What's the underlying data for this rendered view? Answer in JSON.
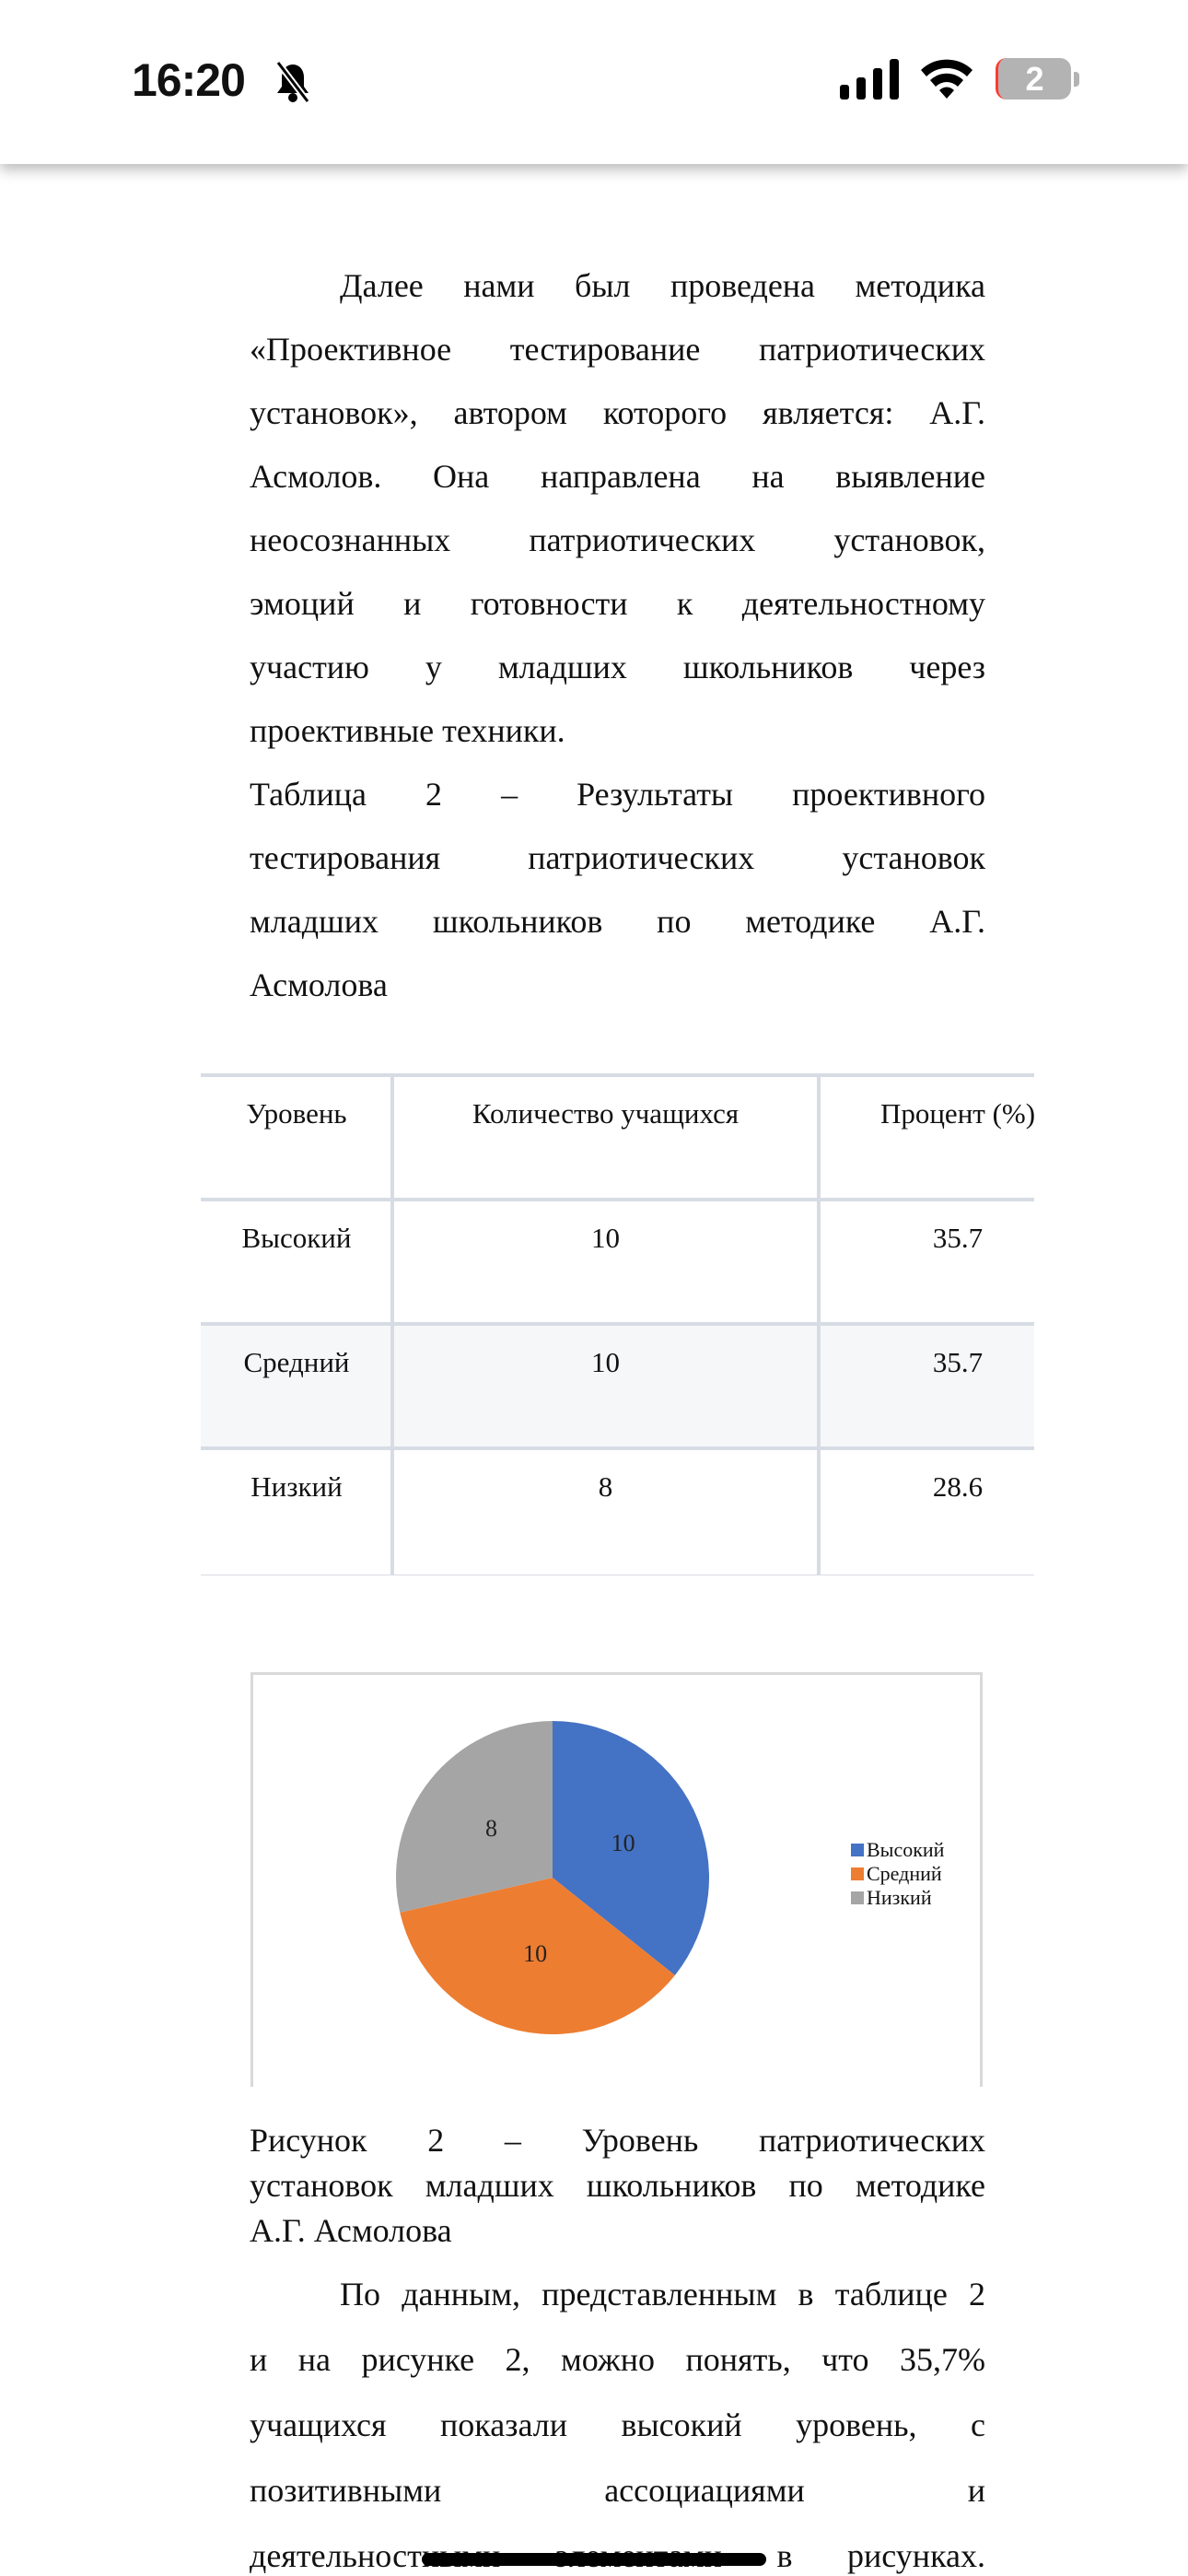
{
  "status_bar": {
    "time": "16:20",
    "battery_level": "2",
    "icons": [
      "bell-slash-icon",
      "signal-icon",
      "wifi-icon",
      "battery-icon"
    ]
  },
  "paragraph1": [
    "Далее нами был проведена методика",
    "«Проективное тестирование патриотических",
    "установок», автором которого является: А.Г.",
    "Асмолов. Она направлена на выявление",
    "неосознанных  патриотических установок,",
    "эмоций и готовности к деятельностному",
    "участию у младших школьников через",
    "проективные техники."
  ],
  "table_caption": [
    "Таблица 2 – Результаты проективного",
    "тестирования патриотических установок",
    "младших школьников по методике А.Г.",
    "Асмолова"
  ],
  "table": {
    "headers": [
      "Уровень",
      "Количество учащихся",
      "Процент (%)"
    ],
    "rows": [
      [
        "Высокий",
        "10",
        "35.7"
      ],
      [
        "Средний",
        "10",
        "35.7"
      ],
      [
        "Низкий",
        "8",
        "28.6"
      ]
    ]
  },
  "chart_data": {
    "type": "pie",
    "categories": [
      "Высокий",
      "Средний",
      "Низкий"
    ],
    "values": [
      10,
      10,
      8
    ],
    "data_labels": [
      "10",
      "10",
      "8"
    ],
    "colors": [
      "#4472c4",
      "#ed7d31",
      "#a5a5a5"
    ],
    "legend": "right"
  },
  "figure_caption": [
    "Рисунок 2 – Уровень патриотических",
    "установок младших школьников по методике",
    "А.Г. Асмолова"
  ],
  "paragraph2": [
    "По данным, представленным в таблице 2",
    "и на рисунке 2, можно понять, что 35,7%",
    "учащихся показали высокий уровень, с",
    "позитивными ассоциациями и",
    "деятельностными элементами в рисунках."
  ]
}
